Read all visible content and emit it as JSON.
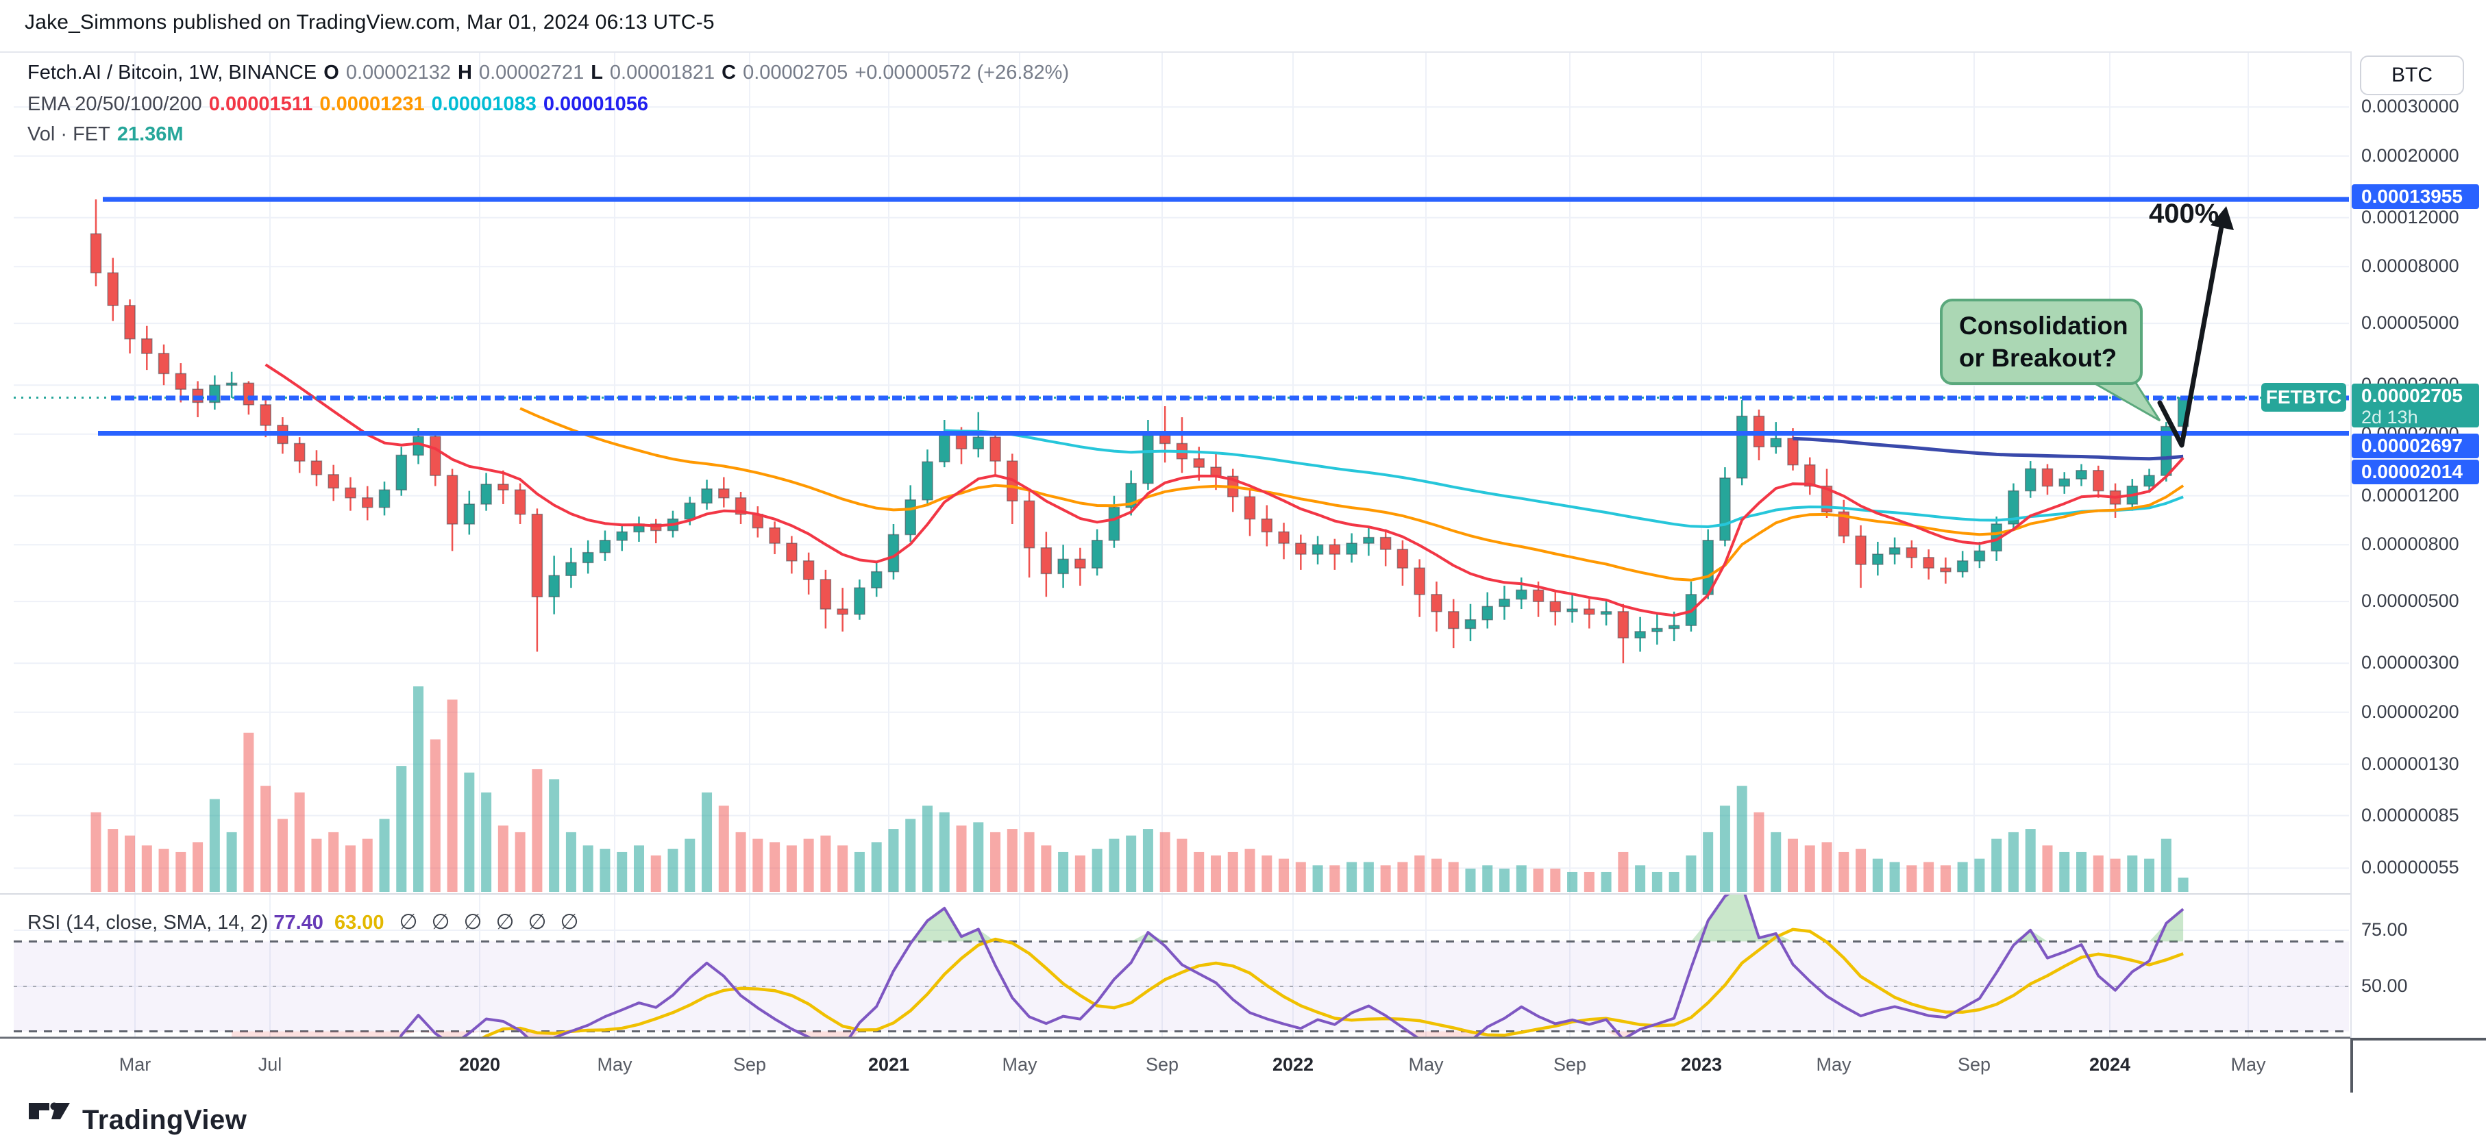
{
  "header": {
    "attribution": "Jake_Simmons published on TradingView.com, Mar 01, 2024 06:13 UTC-5"
  },
  "legend": {
    "symbol_title": "Fetch.AI / Bitcoin, 1W, BINANCE",
    "o_label": "O",
    "o_value": "0.00002132",
    "h_label": "H",
    "h_value": "0.00002721",
    "l_label": "L",
    "l_value": "0.00001821",
    "c_label": "C",
    "c_value": "0.00002705",
    "change_text": "+0.00000572 (+26.82%)",
    "ema_label": "EMA 20/50/100/200",
    "ema20_value": "0.00001511",
    "ema50_value": "0.00001231",
    "ema100_value": "0.00001083",
    "ema200_value": "0.00001056",
    "vol_label": "Vol · FET",
    "vol_value": "21.36M"
  },
  "rsi_legend": {
    "label": "RSI (14, close, SMA, 14, 2)",
    "rsi_value": "77.40",
    "sma_value": "63.00",
    "empties": "∅∅∅∅∅∅"
  },
  "price_scale": {
    "currency_button": "BTC",
    "ticks": [
      "0.00030000",
      "0.00020000",
      "0.00012000",
      "0.00008000",
      "0.00005000",
      "0.00003000",
      "0.00002000",
      "0.00001200",
      "0.00000800",
      "0.00000500",
      "0.00000300",
      "0.00000200",
      "0.00000130",
      "0.00000085",
      "0.00000055"
    ],
    "resistance_label": "0.00013955",
    "last_price_label": "0.00002705",
    "countdown": "2d 13h",
    "mid_level_label": "0.00002697",
    "low_level_label": "0.00002014"
  },
  "rsi_scale": {
    "ticks": [
      "75.00",
      "50.00"
    ]
  },
  "time_axis": {
    "ticks": [
      "Mar",
      "Jul",
      "2020",
      "May",
      "Sep",
      "2021",
      "May",
      "Sep",
      "2022",
      "May",
      "Sep",
      "2023",
      "May",
      "Sep",
      "2024",
      "May"
    ],
    "year_flags": [
      0,
      0,
      1,
      0,
      0,
      1,
      0,
      0,
      1,
      0,
      0,
      1,
      0,
      0,
      1,
      0
    ]
  },
  "annotations": {
    "callout_line1": "Consolidation",
    "callout_line2": "or Breakout?",
    "symbol_flag": "FETBTC",
    "target_pct": "400%"
  },
  "footer": {
    "brand": "TradingView"
  },
  "colors": {
    "up": "#26a69a",
    "down": "#ef5350",
    "ray_blue": "#2962ff",
    "ema20": "#f23645",
    "ema50": "#ff9800",
    "ema100": "#26c6da",
    "ema200": "#3949ab",
    "rsi_line": "#7e57c2",
    "rsi_sma": "#f0c000",
    "grid": "#eef1f8"
  },
  "chart_data": {
    "type": "candlestick",
    "title": "Fetch.AI / Bitcoin, 1W, BINANCE",
    "timeframe": "1W",
    "scale": "logarithmic",
    "x_range": [
      "2019-02",
      "2024-05"
    ],
    "y_axis_ticks": [
      0.0003,
      0.0002,
      0.00012,
      8e-05,
      5e-05,
      3e-05,
      2e-05,
      1.2e-05,
      8e-06,
      5e-06,
      3e-06,
      2e-06,
      1.3e-06,
      8.5e-07,
      5.5e-07
    ],
    "levels": {
      "resistance": 0.00013955,
      "mid": 2.697e-05,
      "low": 2.014e-05,
      "last_price": 2.705e-05
    },
    "units_note": "candles are [open,high,low,close,volume_millions] with prices in 1e-8 BTC",
    "candles_1e8": [
      [
        10500,
        13955,
        6800,
        7600,
        120
      ],
      [
        7600,
        8600,
        5100,
        5800,
        95
      ],
      [
        5800,
        6100,
        3900,
        4400,
        85
      ],
      [
        4400,
        4900,
        3400,
        3900,
        70
      ],
      [
        3900,
        4200,
        3000,
        3300,
        65
      ],
      [
        3300,
        3600,
        2600,
        2900,
        60
      ],
      [
        2900,
        3100,
        2300,
        2600,
        75
      ],
      [
        2600,
        3250,
        2450,
        3000,
        140
      ],
      [
        3000,
        3350,
        2700,
        3050,
        90
      ],
      [
        3050,
        3100,
        2350,
        2550,
        240
      ],
      [
        2550,
        2700,
        1950,
        2150,
        160
      ],
      [
        2150,
        2300,
        1700,
        1850,
        110
      ],
      [
        1850,
        1950,
        1450,
        1600,
        150
      ],
      [
        1600,
        1750,
        1300,
        1430,
        80
      ],
      [
        1430,
        1550,
        1150,
        1280,
        90
      ],
      [
        1280,
        1400,
        1060,
        1180,
        70
      ],
      [
        1180,
        1300,
        980,
        1090,
        80
      ],
      [
        1090,
        1350,
        1020,
        1260,
        110
      ],
      [
        1260,
        1800,
        1200,
        1680,
        190
      ],
      [
        1680,
        2100,
        1560,
        1960,
        310
      ],
      [
        1960,
        2050,
        1300,
        1420,
        230
      ],
      [
        1420,
        1500,
        760,
        950,
        290
      ],
      [
        950,
        1250,
        870,
        1120,
        180
      ],
      [
        1120,
        1450,
        1060,
        1320,
        150
      ],
      [
        1320,
        1480,
        1120,
        1260,
        100
      ],
      [
        1260,
        1330,
        950,
        1030,
        90
      ],
      [
        1030,
        1080,
        330,
        520,
        185
      ],
      [
        520,
        730,
        450,
        620,
        170
      ],
      [
        620,
        780,
        560,
        690,
        90
      ],
      [
        690,
        830,
        630,
        750,
        70
      ],
      [
        750,
        900,
        700,
        830,
        65
      ],
      [
        830,
        950,
        760,
        890,
        60
      ],
      [
        890,
        1010,
        820,
        950,
        70
      ],
      [
        950,
        990,
        810,
        900,
        55
      ],
      [
        900,
        1060,
        850,
        990,
        65
      ],
      [
        990,
        1190,
        940,
        1130,
        80
      ],
      [
        1130,
        1370,
        1070,
        1270,
        150
      ],
      [
        1270,
        1400,
        1090,
        1180,
        130
      ],
      [
        1180,
        1240,
        950,
        1030,
        90
      ],
      [
        1030,
        1100,
        850,
        920,
        80
      ],
      [
        920,
        970,
        740,
        810,
        75
      ],
      [
        810,
        860,
        630,
        700,
        70
      ],
      [
        700,
        750,
        530,
        600,
        80
      ],
      [
        600,
        650,
        400,
        470,
        85
      ],
      [
        470,
        560,
        390,
        450,
        70
      ],
      [
        450,
        600,
        430,
        560,
        60
      ],
      [
        560,
        700,
        520,
        640,
        75
      ],
      [
        640,
        950,
        600,
        870,
        95
      ],
      [
        870,
        1310,
        820,
        1160,
        110
      ],
      [
        1160,
        1760,
        1100,
        1590,
        130
      ],
      [
        1590,
        2250,
        1520,
        2000,
        120
      ],
      [
        2000,
        2120,
        1560,
        1770,
        100
      ],
      [
        1770,
        2400,
        1650,
        1950,
        105
      ],
      [
        1950,
        2050,
        1420,
        1600,
        90
      ],
      [
        1600,
        1700,
        950,
        1150,
        95
      ],
      [
        1150,
        1260,
        610,
        780,
        90
      ],
      [
        780,
        890,
        520,
        630,
        70
      ],
      [
        630,
        800,
        560,
        710,
        60
      ],
      [
        710,
        780,
        570,
        660,
        55
      ],
      [
        660,
        910,
        620,
        830,
        65
      ],
      [
        830,
        1200,
        780,
        1090,
        80
      ],
      [
        1090,
        1480,
        1020,
        1330,
        85
      ],
      [
        1330,
        2250,
        1260,
        2000,
        95
      ],
      [
        2000,
        2520,
        1580,
        1850,
        90
      ],
      [
        1850,
        2300,
        1450,
        1630,
        80
      ],
      [
        1630,
        1800,
        1360,
        1520,
        60
      ],
      [
        1520,
        1700,
        1260,
        1410,
        55
      ],
      [
        1410,
        1500,
        1050,
        1190,
        60
      ],
      [
        1190,
        1280,
        860,
        990,
        65
      ],
      [
        990,
        1110,
        790,
        890,
        55
      ],
      [
        890,
        960,
        710,
        810,
        50
      ],
      [
        810,
        870,
        650,
        740,
        45
      ],
      [
        740,
        860,
        680,
        800,
        40
      ],
      [
        800,
        840,
        650,
        740,
        40
      ],
      [
        740,
        880,
        690,
        810,
        45
      ],
      [
        810,
        930,
        730,
        850,
        45
      ],
      [
        850,
        910,
        670,
        770,
        40
      ],
      [
        770,
        830,
        570,
        660,
        45
      ],
      [
        660,
        710,
        440,
        530,
        55
      ],
      [
        530,
        590,
        390,
        460,
        50
      ],
      [
        460,
        510,
        340,
        400,
        45
      ],
      [
        400,
        490,
        360,
        430,
        35
      ],
      [
        430,
        540,
        400,
        480,
        40
      ],
      [
        480,
        570,
        430,
        510,
        35
      ],
      [
        510,
        610,
        470,
        550,
        40
      ],
      [
        550,
        590,
        440,
        500,
        35
      ],
      [
        500,
        540,
        410,
        460,
        35
      ],
      [
        460,
        530,
        420,
        470,
        30
      ],
      [
        470,
        510,
        400,
        450,
        30
      ],
      [
        450,
        510,
        410,
        460,
        30
      ],
      [
        460,
        490,
        300,
        370,
        60
      ],
      [
        370,
        440,
        330,
        390,
        40
      ],
      [
        390,
        450,
        350,
        400,
        30
      ],
      [
        400,
        460,
        360,
        410,
        30
      ],
      [
        410,
        590,
        390,
        530,
        55
      ],
      [
        530,
        910,
        510,
        830,
        90
      ],
      [
        830,
        1520,
        790,
        1390,
        130
      ],
      [
        1390,
        2650,
        1310,
        2320,
        160
      ],
      [
        2320,
        2450,
        1610,
        1800,
        120
      ],
      [
        1800,
        2210,
        1700,
        1930,
        90
      ],
      [
        1930,
        2100,
        1480,
        1550,
        80
      ],
      [
        1550,
        1650,
        1210,
        1300,
        70
      ],
      [
        1300,
        1500,
        1000,
        1050,
        75
      ],
      [
        1050,
        1160,
        810,
        860,
        60
      ],
      [
        860,
        940,
        560,
        680,
        65
      ],
      [
        680,
        820,
        620,
        740,
        50
      ],
      [
        740,
        850,
        680,
        780,
        45
      ],
      [
        780,
        830,
        660,
        720,
        40
      ],
      [
        720,
        770,
        600,
        660,
        45
      ],
      [
        660,
        720,
        580,
        640,
        40
      ],
      [
        640,
        760,
        610,
        700,
        45
      ],
      [
        700,
        820,
        660,
        760,
        50
      ],
      [
        760,
        1010,
        700,
        950,
        80
      ],
      [
        950,
        1330,
        900,
        1250,
        90
      ],
      [
        1250,
        1600,
        1180,
        1500,
        95
      ],
      [
        1500,
        1560,
        1210,
        1300,
        70
      ],
      [
        1300,
        1460,
        1220,
        1380,
        60
      ],
      [
        1380,
        1560,
        1300,
        1480,
        60
      ],
      [
        1480,
        1540,
        1180,
        1250,
        55
      ],
      [
        1250,
        1330,
        1000,
        1120,
        50
      ],
      [
        1120,
        1380,
        1060,
        1300,
        55
      ],
      [
        1300,
        1500,
        1230,
        1420,
        50
      ],
      [
        1420,
        2210,
        1350,
        2130,
        80
      ],
      [
        2132,
        2721,
        1821,
        2705,
        21.36
      ]
    ],
    "indicators": {
      "ema_periods_weeks": [
        20,
        50,
        100,
        200
      ],
      "ema_last_values": [
        1.511e-05,
        1.231e-05,
        1.083e-05,
        1.056e-05
      ],
      "rsi": {
        "period": 14,
        "source": "close",
        "smoothing": "SMA 14",
        "last": 77.4,
        "sma_last": 63.0,
        "upper_band": 70,
        "lower_band": 30,
        "mid": 50
      }
    }
  }
}
